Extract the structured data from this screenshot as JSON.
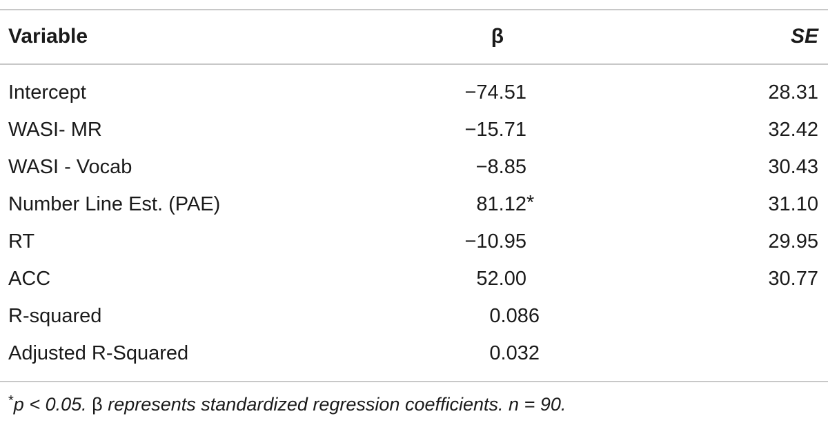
{
  "table": {
    "headers": {
      "variable": "Variable",
      "beta": "β",
      "se": "SE"
    },
    "rows": [
      {
        "variable": "Intercept",
        "beta": "−74.51",
        "beta_note": "",
        "se": "28.31"
      },
      {
        "variable": "WASI- MR",
        "beta": "−15.71",
        "beta_note": "",
        "se": "32.42"
      },
      {
        "variable": "WASI - Vocab",
        "beta": "−8.85",
        "beta_note": "",
        "se": "30.43"
      },
      {
        "variable": "Number Line Est. (PAE)",
        "beta": "81.12",
        "beta_note": "*",
        "se": "31.10"
      },
      {
        "variable": "RT",
        "beta": "−10.95",
        "beta_note": "",
        "se": "29.95"
      },
      {
        "variable": "ACC",
        "beta": "52.00",
        "beta_note": "",
        "se": "30.77"
      },
      {
        "variable": "R-squared",
        "beta": "0.086",
        "beta_note": "",
        "se": ""
      },
      {
        "variable": "Adjusted R-Squared",
        "beta": "0.032",
        "beta_note": "",
        "se": ""
      }
    ]
  },
  "footnote": {
    "star": "*",
    "p_text": "p < 0.05.",
    "beta_symbol": "β",
    "beta_text": "represents standardized regression coefficients.",
    "n_text": "n = 90."
  }
}
